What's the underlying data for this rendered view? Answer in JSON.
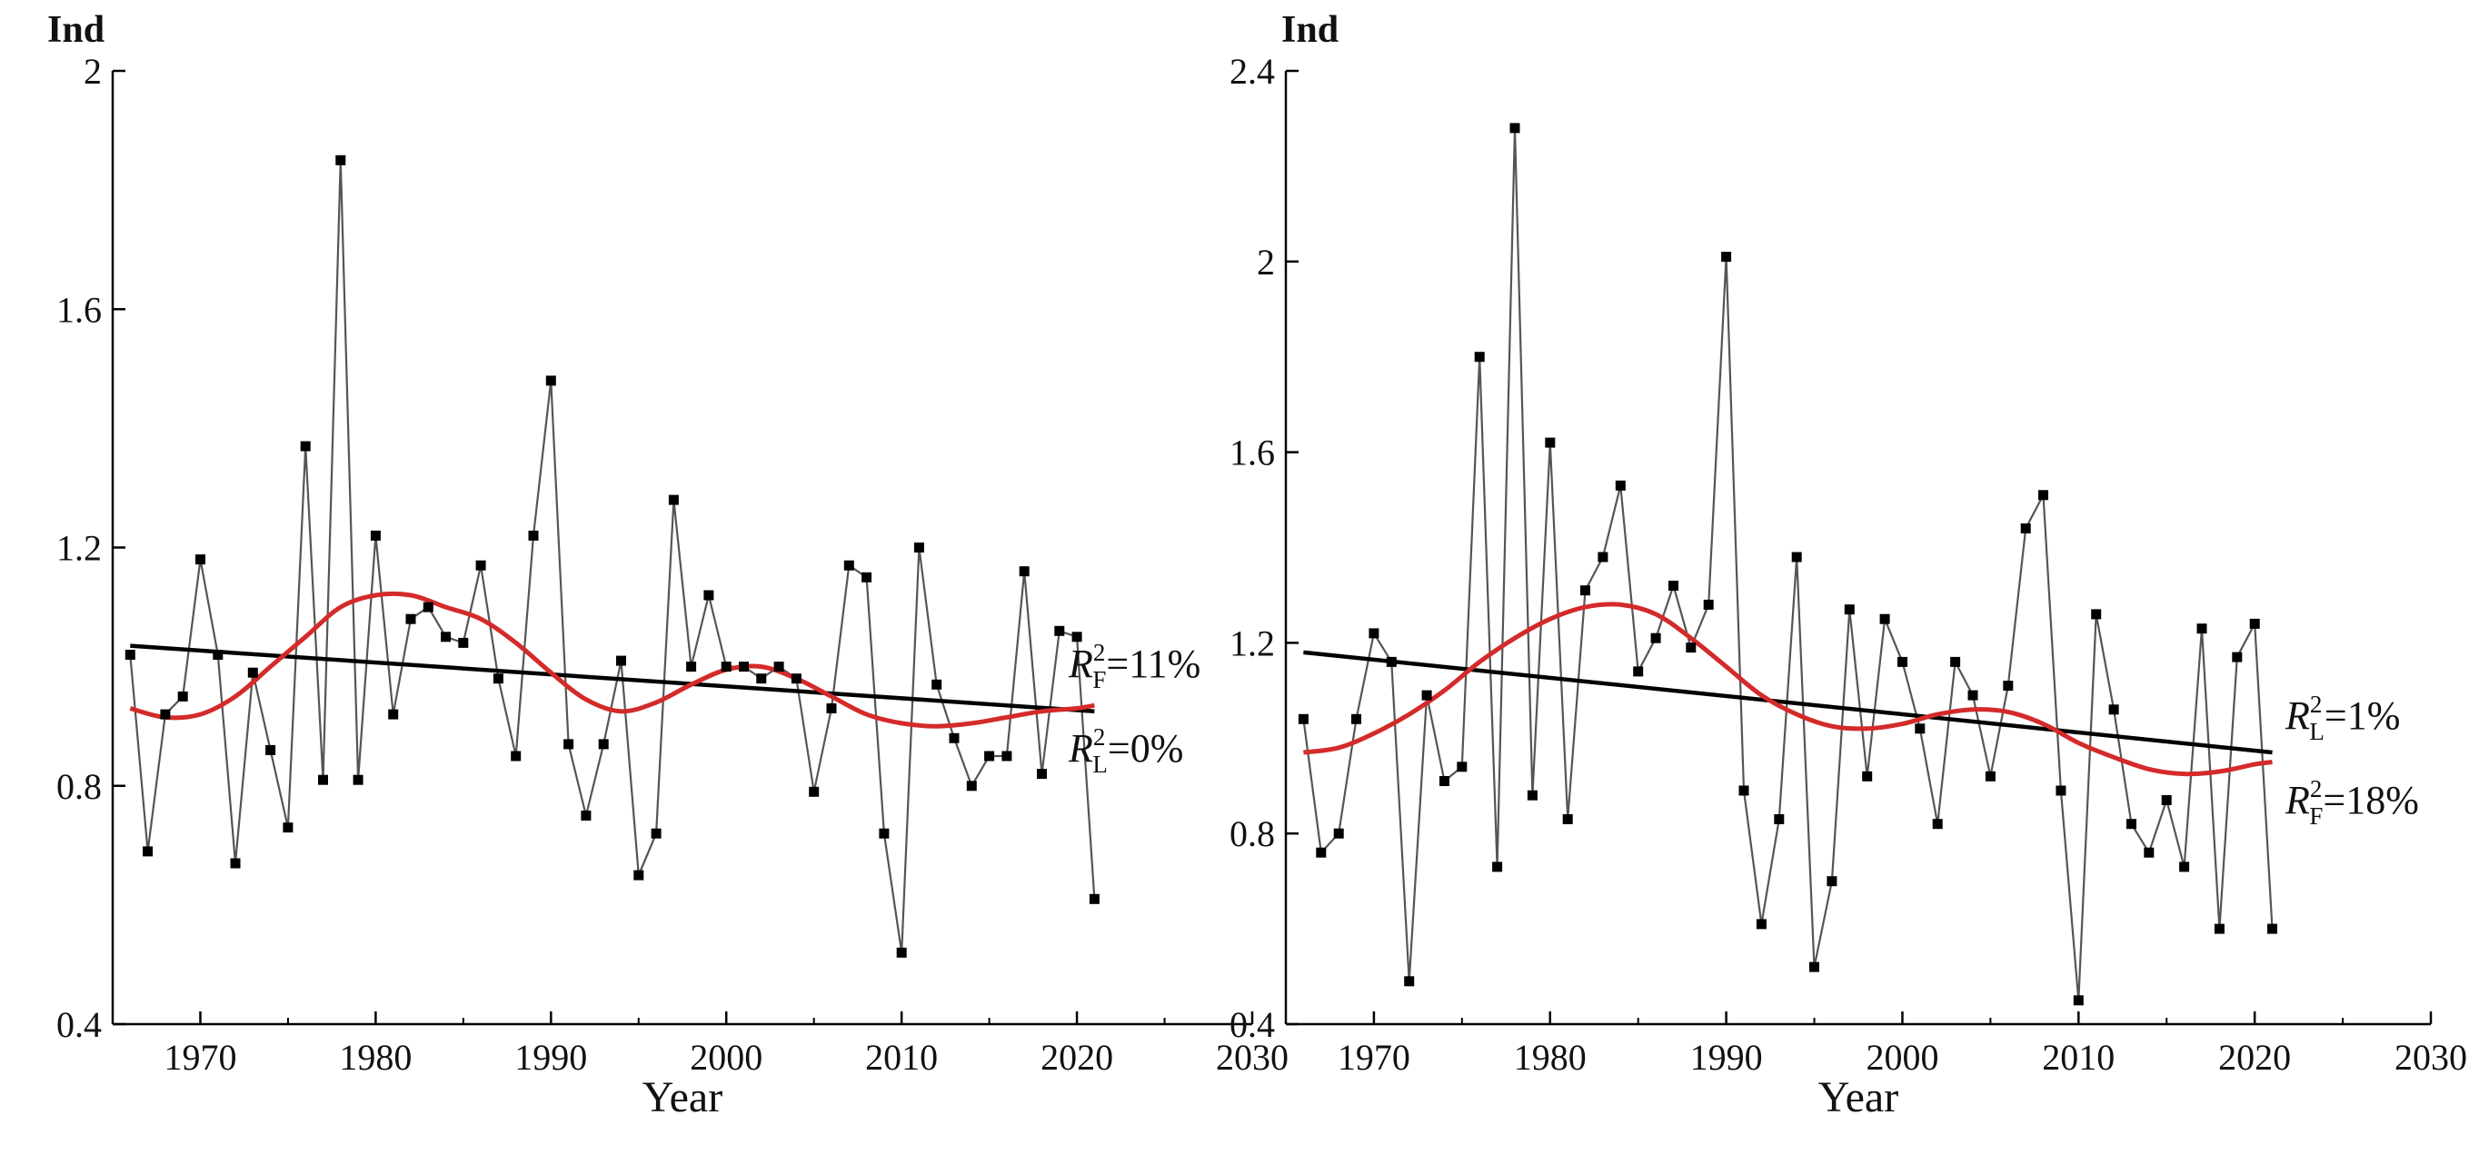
{
  "chart_data": [
    {
      "type": "line",
      "ylabel": "Ind",
      "xlabel": "Year",
      "xlim": [
        1965,
        2030
      ],
      "ylim": [
        0.4,
        2.0
      ],
      "xticks": [
        1970,
        1980,
        1990,
        2000,
        2010,
        2020,
        2030
      ],
      "yticks": [
        0.4,
        0.8,
        1.2,
        1.6,
        2.0
      ],
      "ytick_labels": [
        "0.4",
        "0.8",
        "1.2",
        "1.6",
        "2"
      ],
      "x": [
        1966,
        1967,
        1968,
        1969,
        1970,
        1971,
        1972,
        1973,
        1974,
        1975,
        1976,
        1977,
        1978,
        1979,
        1980,
        1981,
        1982,
        1983,
        1984,
        1985,
        1986,
        1987,
        1988,
        1989,
        1990,
        1991,
        1992,
        1993,
        1994,
        1995,
        1996,
        1997,
        1998,
        1999,
        2000,
        2001,
        2002,
        2003,
        2004,
        2005,
        2006,
        2007,
        2008,
        2009,
        2010,
        2011,
        2012,
        2013,
        2014,
        2015,
        2016,
        2017,
        2018,
        2019,
        2020,
        2021
      ],
      "series": [
        {
          "name": "Ind",
          "kind": "observed",
          "color": "#555555",
          "values": [
            1.02,
            0.69,
            0.92,
            0.95,
            1.18,
            1.02,
            0.67,
            0.99,
            0.86,
            0.73,
            1.37,
            0.81,
            1.85,
            0.81,
            1.22,
            0.92,
            1.08,
            1.1,
            1.05,
            1.04,
            1.17,
            0.98,
            0.85,
            1.22,
            1.48,
            0.87,
            0.75,
            0.87,
            1.01,
            0.65,
            0.72,
            1.28,
            1.0,
            1.12,
            1.0,
            1.0,
            0.98,
            1.0,
            0.98,
            0.79,
            0.93,
            1.17,
            1.15,
            0.72,
            0.52,
            1.2,
            0.97,
            0.88,
            0.8,
            0.85,
            0.85,
            1.16,
            0.82,
            1.06,
            1.05,
            0.61
          ]
        },
        {
          "name": "Linear trend",
          "kind": "linear",
          "color": "#000000",
          "values_at_xlim_ends": [
            1.035,
            0.925
          ]
        },
        {
          "name": "Polynomial fit",
          "kind": "polynomial",
          "color": "#d42a2a",
          "x": [
            1966,
            1968,
            1970,
            1972,
            1974,
            1976,
            1978,
            1980,
            1982,
            1984,
            1986,
            1988,
            1990,
            1992,
            1994,
            1996,
            1998,
            2000,
            2002,
            2004,
            2006,
            2008,
            2010,
            2012,
            2014,
            2016,
            2018,
            2020,
            2021
          ],
          "values": [
            0.93,
            0.915,
            0.92,
            0.95,
            1.0,
            1.05,
            1.1,
            1.12,
            1.12,
            1.1,
            1.08,
            1.04,
            0.99,
            0.945,
            0.925,
            0.94,
            0.97,
            0.995,
            1.0,
            0.98,
            0.95,
            0.92,
            0.905,
            0.9,
            0.905,
            0.915,
            0.925,
            0.93,
            0.935
          ]
        }
      ],
      "annotations": [
        {
          "id": "r2f",
          "prefix": "R",
          "sup": "2",
          "sub": "F",
          "suffix": "=11%"
        },
        {
          "id": "r2l",
          "prefix": "R",
          "sup": "2",
          "sub": "L",
          "suffix": "=0%"
        }
      ]
    },
    {
      "type": "line",
      "ylabel": "Ind",
      "xlabel": "Year",
      "xlim": [
        1965,
        2030
      ],
      "ylim": [
        0.4,
        2.4
      ],
      "xticks": [
        1970,
        1980,
        1990,
        2000,
        2010,
        2020,
        2030
      ],
      "yticks": [
        0.4,
        0.8,
        1.2,
        1.6,
        2.0,
        2.4
      ],
      "ytick_labels": [
        "0.4",
        "0.8",
        "1.2",
        "1.6",
        "2",
        "2.4"
      ],
      "x": [
        1966,
        1967,
        1968,
        1969,
        1970,
        1971,
        1972,
        1973,
        1974,
        1975,
        1976,
        1977,
        1978,
        1979,
        1980,
        1981,
        1982,
        1983,
        1984,
        1985,
        1986,
        1987,
        1988,
        1989,
        1990,
        1991,
        1992,
        1993,
        1994,
        1995,
        1996,
        1997,
        1998,
        1999,
        2000,
        2001,
        2002,
        2003,
        2004,
        2005,
        2006,
        2007,
        2008,
        2009,
        2010,
        2011,
        2012,
        2013,
        2014,
        2015,
        2016,
        2017,
        2018,
        2019,
        2020,
        2021
      ],
      "series": [
        {
          "name": "Ind",
          "kind": "observed",
          "color": "#555555",
          "values": [
            1.04,
            0.76,
            0.8,
            1.04,
            1.22,
            1.16,
            0.49,
            1.09,
            0.91,
            0.94,
            1.8,
            0.73,
            2.28,
            0.88,
            1.62,
            0.83,
            1.31,
            1.38,
            1.53,
            1.14,
            1.21,
            1.32,
            1.19,
            1.28,
            2.01,
            0.89,
            0.61,
            0.83,
            1.38,
            0.52,
            0.7,
            1.27,
            0.92,
            1.25,
            1.16,
            1.02,
            0.82,
            1.16,
            1.09,
            0.92,
            1.11,
            1.44,
            1.51,
            0.89,
            0.45,
            1.26,
            1.06,
            0.82,
            0.76,
            0.87,
            0.73,
            1.23,
            0.6,
            1.17,
            1.24,
            0.6
          ]
        },
        {
          "name": "Linear trend",
          "kind": "linear",
          "color": "#000000",
          "values_at_xlim_ends": [
            1.18,
            0.97
          ]
        },
        {
          "name": "Polynomial fit",
          "kind": "polynomial",
          "color": "#d42a2a",
          "x": [
            1966,
            1968,
            1970,
            1972,
            1974,
            1976,
            1978,
            1980,
            1982,
            1984,
            1986,
            1988,
            1990,
            1992,
            1994,
            1996,
            1998,
            2000,
            2002,
            2004,
            2006,
            2008,
            2010,
            2012,
            2014,
            2016,
            2018,
            2020,
            2021
          ],
          "values": [
            0.97,
            0.98,
            1.01,
            1.05,
            1.1,
            1.16,
            1.21,
            1.25,
            1.275,
            1.28,
            1.26,
            1.21,
            1.15,
            1.09,
            1.05,
            1.025,
            1.02,
            1.03,
            1.05,
            1.06,
            1.055,
            1.03,
            0.99,
            0.96,
            0.935,
            0.925,
            0.93,
            0.945,
            0.95
          ]
        }
      ],
      "annotations": [
        {
          "id": "r2l",
          "prefix": "R",
          "sup": "2",
          "sub": "L",
          "suffix": "=1%"
        },
        {
          "id": "r2f",
          "prefix": "R",
          "sup": "2",
          "sub": "F",
          "suffix": "=18%"
        }
      ]
    }
  ]
}
